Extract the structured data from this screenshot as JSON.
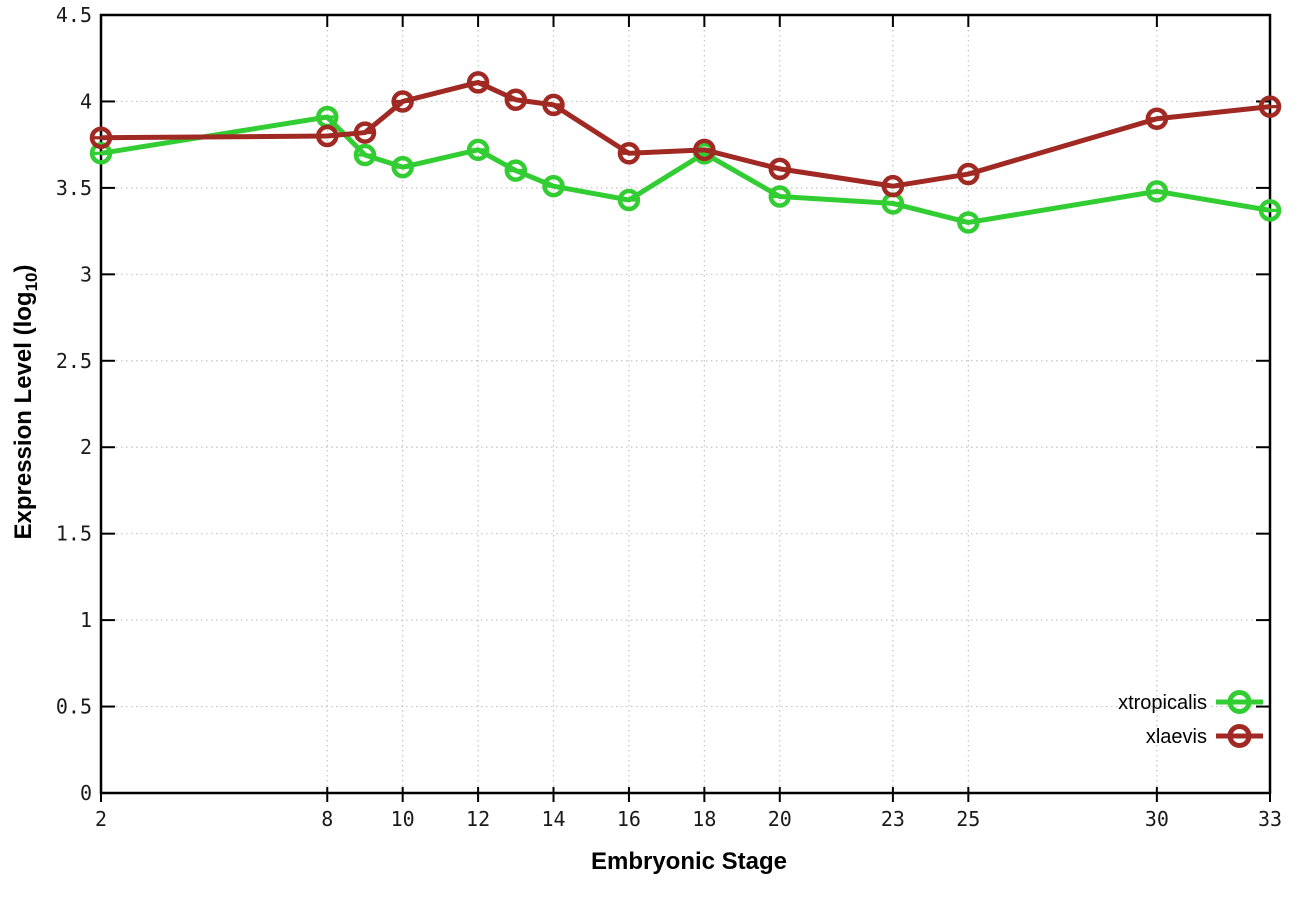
{
  "chart_data": {
    "type": "line",
    "title": "",
    "xlabel": "Embryonic Stage",
    "ylabel": {
      "main": "Expression Level (log",
      "subscript": "10",
      "close": ")"
    },
    "x": [
      2,
      8,
      9,
      10,
      12,
      13,
      14,
      16,
      18,
      20,
      23,
      25,
      30,
      33
    ],
    "series": [
      {
        "name": "xtropicalis",
        "color": "#32cd32",
        "values": [
          3.7,
          3.91,
          3.69,
          3.62,
          3.72,
          3.6,
          3.51,
          3.43,
          3.7,
          3.45,
          3.41,
          3.3,
          3.48,
          3.37
        ]
      },
      {
        "name": "xlaevis",
        "color": "#a02a23",
        "values": [
          3.79,
          3.8,
          3.82,
          4.0,
          4.11,
          4.01,
          3.98,
          3.7,
          3.72,
          3.61,
          3.51,
          3.58,
          3.9,
          3.97
        ]
      }
    ],
    "xlim": [
      2,
      33
    ],
    "ylim": [
      0,
      4.5
    ],
    "xticks": {
      "values": [
        2,
        8,
        10,
        12,
        14,
        16,
        18,
        20,
        23,
        25,
        30,
        33
      ],
      "labels": [
        "2",
        "8",
        "10",
        "12",
        "14",
        "16",
        "18",
        "20",
        "23",
        "25",
        "30",
        "33"
      ]
    },
    "yticks": {
      "values": [
        0,
        0.5,
        1,
        1.5,
        2,
        2.5,
        3,
        3.5,
        4,
        4.5
      ],
      "labels": [
        "0",
        "0.5",
        "1",
        "1.5",
        "2",
        "2.5",
        "3",
        "3.5",
        "4",
        "4.5"
      ]
    },
    "grid": true,
    "marker": "open-circle-with-center-dash",
    "legend": {
      "position": "bottom-right",
      "entries": [
        "xtropicalis",
        "xlaevis"
      ]
    },
    "colors": {
      "background": "#ffffff",
      "axis": "#000000",
      "grid": "#c4c4c4",
      "xtropicalis": "#32cd32",
      "xlaevis": "#a02a23"
    }
  }
}
